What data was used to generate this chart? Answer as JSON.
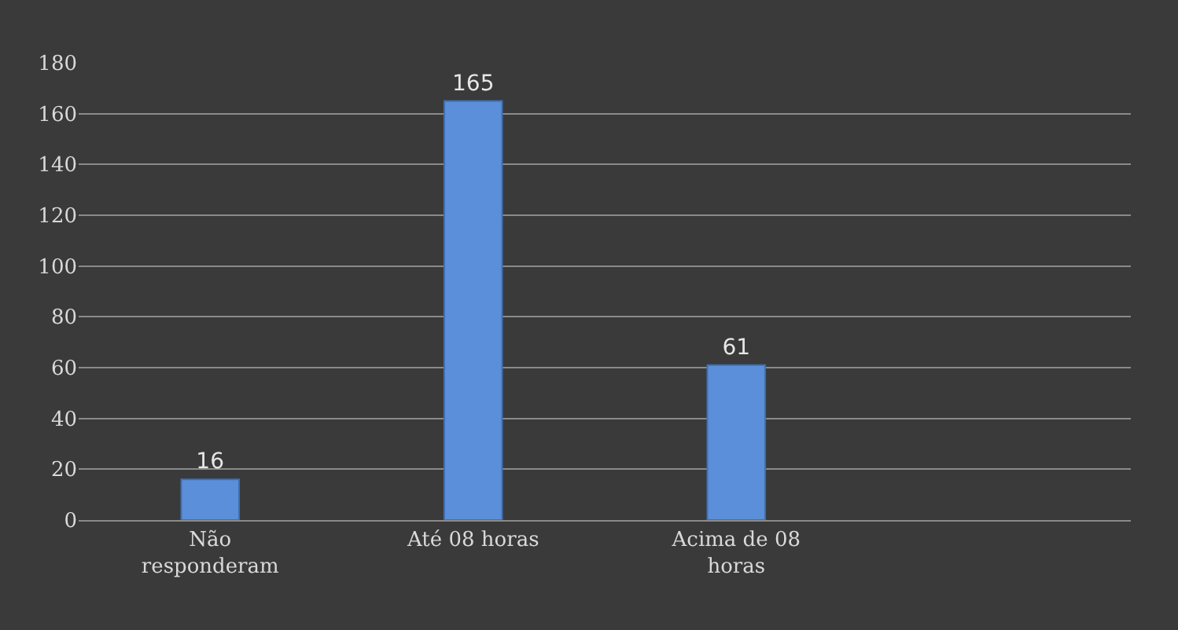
{
  "chart_data": {
    "type": "bar",
    "categories": [
      "Não responderam",
      "Até 08 horas",
      "Acima de 08 horas"
    ],
    "values": [
      16,
      165,
      61
    ],
    "color": "#5b8fd9",
    "ylim": [
      0,
      180
    ],
    "yticks": [
      0,
      20,
      40,
      60,
      80,
      100,
      120,
      140,
      160,
      180
    ],
    "grid": "y",
    "data_labels": true
  }
}
